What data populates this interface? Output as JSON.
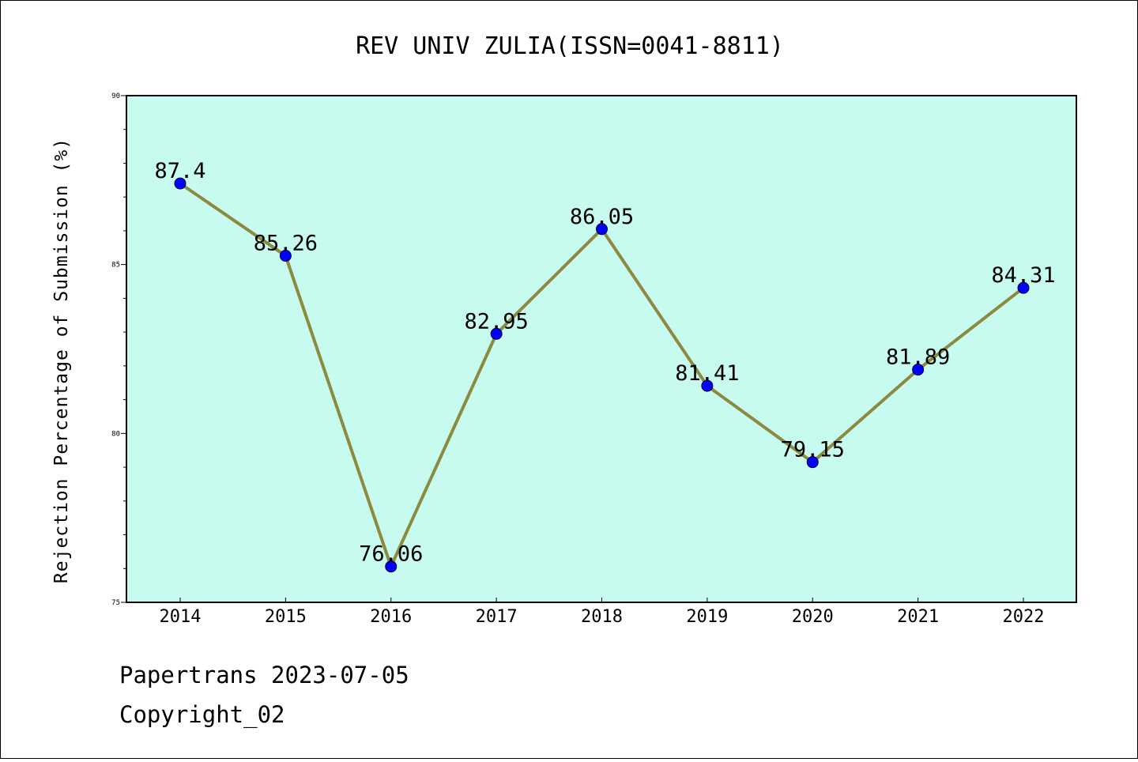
{
  "chart_data": {
    "type": "line",
    "title": "REV UNIV ZULIA(ISSN=0041-8811)",
    "xlabel": "",
    "ylabel": "Rejection Percentage of Submission (%)",
    "categories": [
      "2014",
      "2015",
      "2016",
      "2017",
      "2018",
      "2019",
      "2020",
      "2021",
      "2022"
    ],
    "series": [
      {
        "values": [
          87.4,
          85.26,
          76.06,
          82.95,
          86.05,
          81.41,
          79.15,
          81.89,
          84.31
        ],
        "labels": [
          "87.4",
          "85.26",
          "76.06",
          "82.95",
          "86.05",
          "81.41",
          "79.15",
          "81.89",
          "84.31"
        ]
      }
    ],
    "ylim": [
      75,
      90
    ],
    "yticks": [
      "75",
      "80",
      "85",
      "90"
    ],
    "grid": false,
    "colors": {
      "plot_background": "#c8fbef",
      "line": "#8b8a3e",
      "marker": "#0000ff"
    }
  },
  "footer": {
    "line1": "Papertrans 2023-07-05",
    "line2": "Copyright_02"
  }
}
